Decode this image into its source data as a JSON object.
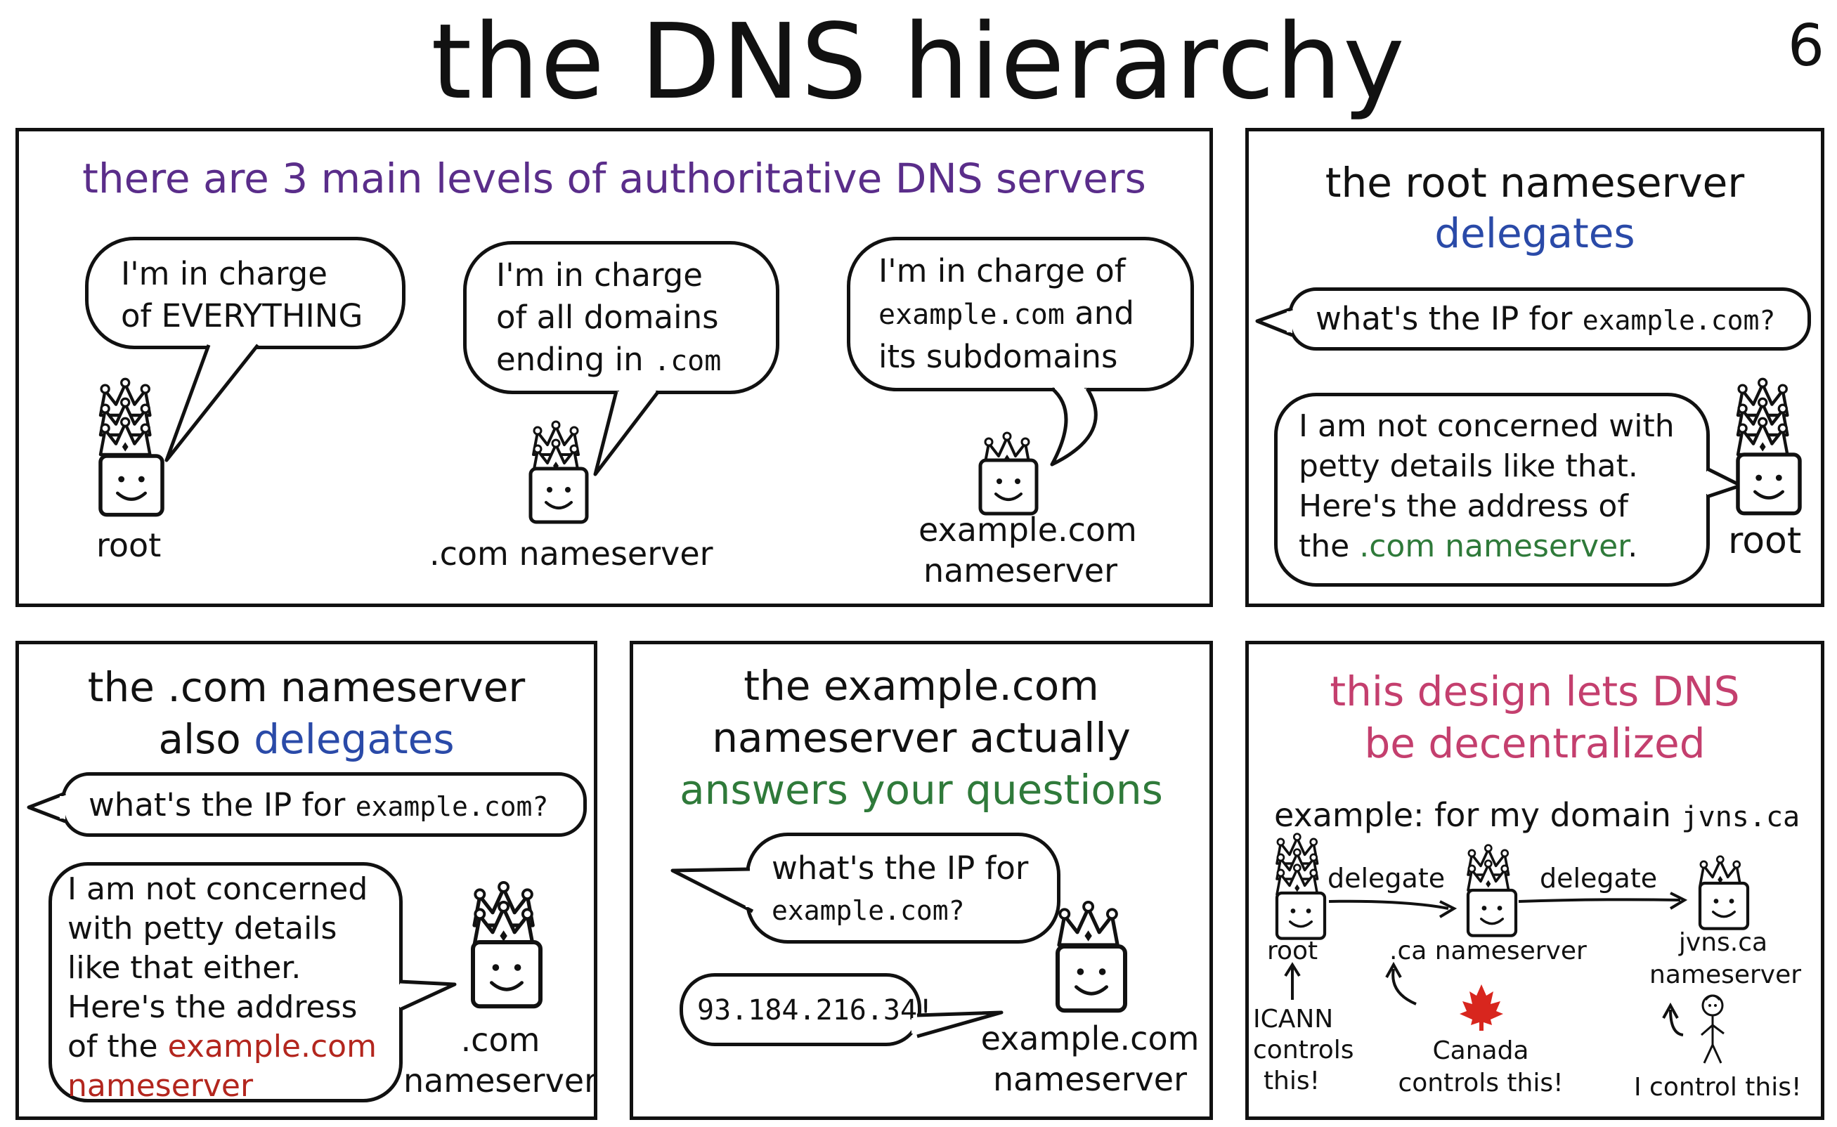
{
  "page": {
    "title": "the DNS hierarchy",
    "page_number": "6"
  },
  "panel1": {
    "heading": "there are 3 main levels of authoritative DNS servers",
    "root_bubble": [
      "I'm in charge",
      "of EVERYTHING"
    ],
    "com_bubble": [
      "I'm in charge",
      "of all domains",
      "ending in"
    ],
    "com_bubble_code": ".com",
    "example_bubble_line1": "I'm in charge of",
    "example_bubble_code": "example.com",
    "example_bubble_and": "and",
    "example_bubble_line3": "its subdomains",
    "root_label": "root",
    "com_label": ".com nameserver",
    "example_label": [
      "example.com",
      "nameserver"
    ]
  },
  "panel2": {
    "heading": "the root nameserver",
    "heading_emph": "delegates",
    "question_text": "what's the IP for",
    "question_code": "example.com?",
    "answer": [
      "I am not concerned with",
      "petty details like that.",
      "Here's the address of",
      "the"
    ],
    "answer_link": ".com nameserver",
    "answer_end": ".",
    "root_label": "root"
  },
  "panel3": {
    "heading": "the .com nameserver",
    "heading_line2": "also",
    "heading_emph": "delegates",
    "question_text": "what's the IP for",
    "question_code": "example.com?",
    "answer": [
      "I am not concerned",
      "with petty details",
      "like that either.",
      "Here's the address",
      "of the"
    ],
    "answer_link1": "example.com",
    "answer_link2": "nameserver",
    "label": [
      ".com",
      "nameserver"
    ]
  },
  "panel4": {
    "heading": [
      "the example.com",
      "nameserver actually"
    ],
    "heading_emph": "answers your questions",
    "question_text": "what's the IP for",
    "question_code": "example.com?",
    "answer": "93.184.216.34!",
    "label": [
      "example.com",
      "nameserver"
    ]
  },
  "panel5": {
    "heading": [
      "this design lets DNS",
      "be decentralized"
    ],
    "example_text": "example: for my domain",
    "example_code": "jvns.ca",
    "delegate1": "delegate",
    "delegate2": "delegate",
    "root_label": "root",
    "ca_label": ".ca nameserver",
    "jvns_label": [
      "jvns.ca",
      "nameserver"
    ],
    "icann": [
      "ICANN",
      "controls",
      "this!"
    ],
    "canada": [
      "Canada",
      "controls this!"
    ],
    "me": "I control this!"
  },
  "colors": {
    "purple": "#5a2d8a",
    "blue": "#2a4aa8",
    "green": "#2f7a3a",
    "red": "#b3261e",
    "pink": "#c43f6e",
    "maple": "#d8261e"
  }
}
